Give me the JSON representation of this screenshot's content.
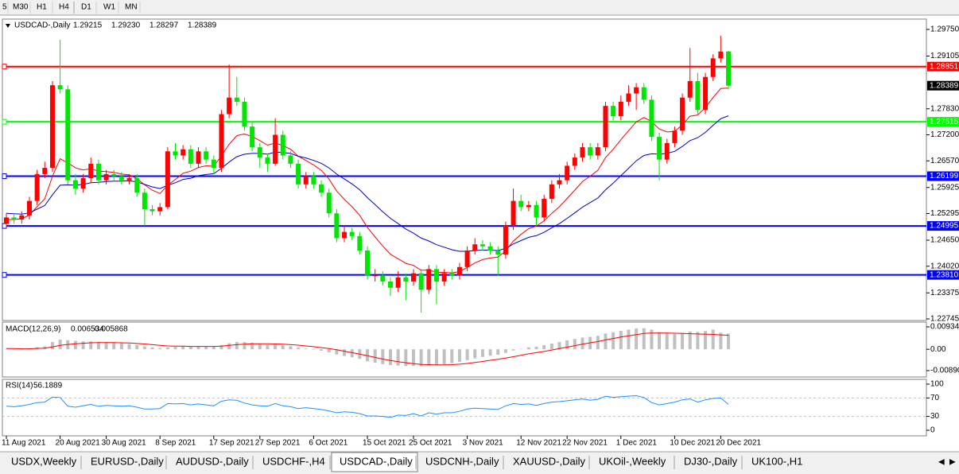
{
  "toolbar": [
    "5",
    "M30",
    "H1",
    "H4",
    "D1",
    "W1",
    "MN"
  ],
  "tabs": [
    "USDX,Weekly",
    "EURUSD-,Daily",
    "AUDUSD-,Daily",
    "USDCHF-,H4",
    "USDCAD-,Daily",
    "USDCNH-,Daily",
    "XAUUSD-,Daily",
    "UKOil-,Weekly",
    "DJ30-,Daily",
    "UK100-,H1"
  ],
  "active_tab": "USDCAD-,Daily",
  "chart_data": {
    "type": "candlestick",
    "title": "USDCAD-,Daily",
    "last_labels": [
      "1.29215",
      "1.29230",
      "1.28297",
      "1.28389"
    ],
    "up_color": "#ff0000",
    "down_color": "#00e600",
    "categories": [
      "11 Aug 2021",
      null,
      null,
      null,
      null,
      null,
      null,
      "20 Aug 2021",
      null,
      null,
      null,
      null,
      null,
      "30 Aug 2021",
      null,
      null,
      null,
      null,
      null,
      null,
      "8 Sep 2021",
      null,
      null,
      null,
      null,
      null,
      null,
      "17 Sep 2021",
      null,
      null,
      null,
      null,
      null,
      "27 Sep 2021",
      null,
      null,
      null,
      null,
      null,
      null,
      "6 Oct 2021",
      null,
      null,
      null,
      null,
      null,
      null,
      "15 Oct 2021",
      null,
      null,
      null,
      null,
      null,
      "25 Oct 2021",
      null,
      null,
      null,
      null,
      null,
      null,
      "3 Nov 2021",
      null,
      null,
      null,
      null,
      null,
      null,
      "12 Nov 2021",
      null,
      null,
      null,
      null,
      null,
      "22 Nov 2021",
      null,
      null,
      null,
      null,
      null,
      null,
      "1 Dec 2021",
      null,
      null,
      null,
      null,
      null,
      null,
      "10 Dec 2021",
      null,
      null,
      null,
      null,
      null,
      "20 Dec 2021",
      null
    ],
    "ohlc": [
      [
        1.2505,
        1.253,
        1.2495,
        1.252
      ],
      [
        1.252,
        1.253,
        1.2505,
        1.2515
      ],
      [
        1.2515,
        1.2535,
        1.2505,
        1.2525
      ],
      [
        1.2525,
        1.257,
        1.2515,
        1.256
      ],
      [
        1.256,
        1.2635,
        1.255,
        1.2625
      ],
      [
        1.2625,
        1.2655,
        1.2615,
        1.264
      ],
      [
        1.264,
        1.285,
        1.263,
        1.284
      ],
      [
        1.284,
        1.295,
        1.282,
        1.283
      ],
      [
        1.283,
        1.284,
        1.26,
        1.261
      ],
      [
        1.261,
        1.2625,
        1.2575,
        1.259
      ],
      [
        1.259,
        1.2625,
        1.258,
        1.2615
      ],
      [
        1.2615,
        1.2665,
        1.2605,
        1.265
      ],
      [
        1.265,
        1.266,
        1.26,
        1.261
      ],
      [
        1.261,
        1.2635,
        1.26,
        1.2625
      ],
      [
        1.2625,
        1.2635,
        1.261,
        1.262
      ],
      [
        1.262,
        1.263,
        1.26,
        1.261
      ],
      [
        1.261,
        1.2625,
        1.26,
        1.2615
      ],
      [
        1.2615,
        1.2625,
        1.257,
        1.258
      ],
      [
        1.258,
        1.259,
        1.25,
        1.254
      ],
      [
        1.254,
        1.255,
        1.2525,
        1.2535
      ],
      [
        1.2535,
        1.2555,
        1.2525,
        1.2545
      ],
      [
        1.2545,
        1.269,
        1.254,
        1.268
      ],
      [
        1.268,
        1.27,
        1.266,
        1.267
      ],
      [
        1.267,
        1.2695,
        1.266,
        1.2685
      ],
      [
        1.2685,
        1.2695,
        1.264,
        1.265
      ],
      [
        1.265,
        1.269,
        1.264,
        1.268
      ],
      [
        1.268,
        1.269,
        1.265,
        1.266
      ],
      [
        1.266,
        1.267,
        1.2625,
        1.264
      ],
      [
        1.264,
        1.278,
        1.263,
        1.277
      ],
      [
        1.277,
        1.289,
        1.276,
        1.281
      ],
      [
        1.281,
        1.286,
        1.279,
        1.28
      ],
      [
        1.28,
        1.281,
        1.273,
        1.274
      ],
      [
        1.274,
        1.275,
        1.268,
        1.269
      ],
      [
        1.269,
        1.27,
        1.264,
        1.2665
      ],
      [
        1.2665,
        1.2675,
        1.263,
        1.265
      ],
      [
        1.265,
        1.276,
        1.2645,
        1.272
      ],
      [
        1.272,
        1.273,
        1.266,
        1.267
      ],
      [
        1.267,
        1.268,
        1.264,
        1.265
      ],
      [
        1.265,
        1.266,
        1.259,
        1.26
      ],
      [
        1.26,
        1.263,
        1.259,
        1.262
      ],
      [
        1.262,
        1.263,
        1.259,
        1.26
      ],
      [
        1.26,
        1.261,
        1.257,
        1.258
      ],
      [
        1.258,
        1.259,
        1.252,
        1.253
      ],
      [
        1.253,
        1.254,
        1.246,
        1.247
      ],
      [
        1.247,
        1.25,
        1.246,
        1.2485
      ],
      [
        1.2485,
        1.2495,
        1.2465,
        1.2475
      ],
      [
        1.2475,
        1.2485,
        1.243,
        1.244
      ],
      [
        1.244,
        1.245,
        1.237,
        1.238
      ],
      [
        1.238,
        1.2395,
        1.2365,
        1.238
      ],
      [
        1.238,
        1.239,
        1.2355,
        1.2365
      ],
      [
        1.2365,
        1.2375,
        1.233,
        1.235
      ],
      [
        1.235,
        1.239,
        1.234,
        1.2375
      ],
      [
        1.2375,
        1.2385,
        1.232,
        1.2365
      ],
      [
        1.2365,
        1.2395,
        1.2355,
        1.2385
      ],
      [
        1.2385,
        1.2395,
        1.229,
        1.2345
      ],
      [
        1.2345,
        1.2405,
        1.2335,
        1.2395
      ],
      [
        1.2395,
        1.2405,
        1.231,
        1.2365
      ],
      [
        1.2365,
        1.2395,
        1.2355,
        1.2385
      ],
      [
        1.2385,
        1.2395,
        1.237,
        1.238
      ],
      [
        1.238,
        1.241,
        1.237,
        1.24
      ],
      [
        1.24,
        1.245,
        1.239,
        1.244
      ],
      [
        1.244,
        1.247,
        1.243,
        1.2455
      ],
      [
        1.2455,
        1.2465,
        1.244,
        1.245
      ],
      [
        1.245,
        1.246,
        1.243,
        1.244
      ],
      [
        1.244,
        1.245,
        1.238,
        1.243
      ],
      [
        1.243,
        1.251,
        1.242,
        1.25
      ],
      [
        1.25,
        1.259,
        1.249,
        1.256
      ],
      [
        1.256,
        1.2575,
        1.2535,
        1.2545
      ],
      [
        1.2545,
        1.256,
        1.2535,
        1.255
      ],
      [
        1.255,
        1.256,
        1.25,
        1.252
      ],
      [
        1.252,
        1.2575,
        1.251,
        1.2565
      ],
      [
        1.2565,
        1.261,
        1.2555,
        1.26
      ],
      [
        1.26,
        1.2625,
        1.259,
        1.261
      ],
      [
        1.261,
        1.2655,
        1.26,
        1.2645
      ],
      [
        1.2645,
        1.2675,
        1.2635,
        1.2665
      ],
      [
        1.2665,
        1.27,
        1.2655,
        1.269
      ],
      [
        1.269,
        1.27,
        1.266,
        1.267
      ],
      [
        1.267,
        1.27,
        1.266,
        1.269
      ],
      [
        1.269,
        1.28,
        1.268,
        1.279
      ],
      [
        1.279,
        1.28,
        1.2755,
        1.2765
      ],
      [
        1.2765,
        1.2815,
        1.2755,
        1.28
      ],
      [
        1.28,
        1.284,
        1.279,
        1.282
      ],
      [
        1.282,
        1.2845,
        1.278,
        1.2835
      ],
      [
        1.2835,
        1.2845,
        1.2795,
        1.2805
      ],
      [
        1.2805,
        1.2815,
        1.2705,
        1.2715
      ],
      [
        1.2715,
        1.2725,
        1.261,
        1.266
      ],
      [
        1.266,
        1.271,
        1.265,
        1.27
      ],
      [
        1.27,
        1.274,
        1.269,
        1.273
      ],
      [
        1.273,
        1.282,
        1.272,
        1.281
      ],
      [
        1.281,
        1.293,
        1.28,
        1.285
      ],
      [
        1.285,
        1.287,
        1.277,
        1.278
      ],
      [
        1.278,
        1.287,
        1.277,
        1.286
      ],
      [
        1.286,
        1.2915,
        1.285,
        1.2905
      ],
      [
        1.2905,
        1.296,
        1.2895,
        1.29215
      ],
      [
        1.29215,
        1.2923,
        1.28297,
        1.28389
      ]
    ],
    "ma": [
      {
        "color": "#ff0000",
        "values": [
          1.2515,
          1.2515,
          1.2517,
          1.2526,
          1.2546,
          1.2565,
          1.262,
          1.2662,
          1.2652,
          1.264,
          1.2635,
          1.2638,
          1.2632,
          1.2631,
          1.2629,
          1.2625,
          1.2623,
          1.2614,
          1.2599,
          1.2586,
          1.2578,
          1.2598,
          1.2612,
          1.2627,
          1.2632,
          1.2641,
          1.2645,
          1.2644,
          1.2669,
          1.2697,
          1.2718,
          1.2722,
          1.2716,
          1.2706,
          1.2695,
          1.27,
          1.2694,
          1.2685,
          1.2668,
          1.2658,
          1.2647,
          1.2634,
          1.2613,
          1.2584,
          1.2564,
          1.2546,
          1.2525,
          1.2496,
          1.2473,
          1.2451,
          1.2431,
          1.242,
          1.2409,
          1.2404,
          1.2392,
          1.2393,
          1.2387,
          1.2387,
          1.2386,
          1.2389,
          1.2399,
          1.241,
          1.2418,
          1.2422,
          1.2424,
          1.2439,
          1.2463,
          1.2479,
          1.2493,
          1.2499,
          1.2512,
          1.253,
          1.2546,
          1.2566,
          1.2586,
          1.2607,
          1.262,
          1.2634,
          1.2665,
          1.2685,
          1.2708,
          1.273,
          1.2751,
          1.2762,
          1.2752,
          1.2734,
          1.2727,
          1.2728,
          1.2744,
          1.2765,
          1.2768,
          1.2786,
          1.281,
          1.2832,
          1.2833
        ]
      },
      {
        "color": "#0000cd",
        "values": [
          1.253,
          1.2529,
          1.2528,
          1.2531,
          1.254,
          1.2549,
          1.2575,
          1.2598,
          1.2599,
          1.2598,
          1.26,
          1.2604,
          1.2605,
          1.2607,
          1.2608,
          1.2608,
          1.2609,
          1.2606,
          1.26,
          1.2594,
          1.259,
          1.2598,
          1.2604,
          1.2612,
          1.2615,
          1.2621,
          1.2624,
          1.2626,
          1.2639,
          1.2654,
          1.2667,
          1.2673,
          1.2675,
          1.2675,
          1.2673,
          1.2678,
          1.2677,
          1.2675,
          1.2668,
          1.2664,
          1.2658,
          1.2651,
          1.264,
          1.2625,
          1.2613,
          1.2601,
          1.2587,
          1.2568,
          1.2551,
          1.2534,
          1.2518,
          1.2505,
          1.2492,
          1.2482,
          1.247,
          1.2463,
          1.2454,
          1.2448,
          1.2442,
          1.2438,
          1.2438,
          1.244,
          1.2441,
          1.2441,
          1.244,
          1.2445,
          1.2456,
          1.2464,
          1.2472,
          1.2476,
          1.2484,
          1.2495,
          1.2505,
          1.2518,
          1.2531,
          1.2545,
          1.2556,
          1.2567,
          1.2587,
          1.2603,
          1.2621,
          1.2639,
          1.2657,
          1.267,
          1.2674,
          1.2673,
          1.2675,
          1.268,
          1.2692,
          1.2706,
          1.2713,
          1.2726,
          1.2743,
          1.2759,
          1.2766
        ]
      }
    ],
    "ylim": [
      1.22745,
      1.2975
    ],
    "yticks": [
      {
        "value": 1.2975,
        "label": "1.29750"
      },
      1.29105,
      {
        "value": 1.2783,
        "label": "1.27830"
      },
      {
        "value": 1.272,
        "label": "1.27200"
      },
      {
        "value": 1.2657,
        "label": "1.26570"
      },
      1.25925,
      1.25295,
      {
        "value": 1.2465,
        "label": "1.24650"
      },
      {
        "value": 1.2402,
        "label": "1.24020"
      },
      1.23375,
      1.22745
    ],
    "hlines": [
      {
        "value": 1.28851,
        "color": "#ff0000"
      },
      {
        "value": 1.27515,
        "color": "#00ff00"
      },
      {
        "value": 1.26199,
        "color": "#0000ff"
      },
      {
        "value": 1.24995,
        "color": "#0000ff"
      },
      {
        "value": 1.2381,
        "label": "1.23810",
        "color": "#0000ff"
      }
    ],
    "macd": {
      "title": "MACD(12,26,9)",
      "hist_color": "#c0c0c0",
      "signal_color": "#ff0000",
      "hist": [
        0.0002,
        0.0001,
        0.0001,
        0.0003,
        0.0008,
        0.0012,
        0.003,
        0.004,
        0.0038,
        0.0035,
        0.0033,
        0.0033,
        0.0031,
        0.003,
        0.0028,
        0.0025,
        0.0022,
        0.0018,
        0.0012,
        0.0008,
        0.0005,
        0.0008,
        0.001,
        0.0012,
        0.0012,
        0.0013,
        0.0012,
        0.0011,
        0.0018,
        0.0025,
        0.003,
        0.003,
        0.0027,
        0.0023,
        0.0019,
        0.002,
        0.0017,
        0.0013,
        0.0007,
        0.0003,
        -0.0001,
        -0.0006,
        -0.0013,
        -0.0022,
        -0.0028,
        -0.0033,
        -0.004,
        -0.005,
        -0.0056,
        -0.0062,
        -0.0066,
        -0.0068,
        -0.007,
        -0.007,
        -0.0071,
        -0.0068,
        -0.0066,
        -0.0062,
        -0.0058,
        -0.0053,
        -0.0045,
        -0.0038,
        -0.0032,
        -0.0027,
        -0.0023,
        -0.0015,
        -0.0005,
        0.0002,
        0.0008,
        0.0011,
        0.0017,
        0.0024,
        0.003,
        0.0037,
        0.0043,
        0.0049,
        0.0052,
        0.0056,
        0.0066,
        0.0071,
        0.0077,
        0.0082,
        0.0087,
        0.0088,
        0.0082,
        0.0072,
        0.0067,
        0.0064,
        0.0068,
        0.0074,
        0.0072,
        0.0076,
        0.0082,
        0.0069,
        0.006534
      ],
      "signal": [
        0.0003,
        0.0003,
        0.0002,
        0.0002,
        0.0004,
        0.0005,
        0.001,
        0.0016,
        0.002,
        0.0023,
        0.0025,
        0.0027,
        0.0028,
        0.0028,
        0.0028,
        0.0027,
        0.0026,
        0.0024,
        0.0022,
        0.0019,
        0.0016,
        0.0014,
        0.0013,
        0.0013,
        0.0012,
        0.0012,
        0.0012,
        0.0012,
        0.0013,
        0.0016,
        0.0019,
        0.0021,
        0.0023,
        0.0023,
        0.0023,
        0.0022,
        0.0021,
        0.0019,
        0.0017,
        0.0014,
        0.0011,
        0.0007,
        0.0003,
        -0.0002,
        -0.0008,
        -0.0014,
        -0.002,
        -0.0027,
        -0.0034,
        -0.0041,
        -0.0047,
        -0.0052,
        -0.0056,
        -0.006,
        -0.0063,
        -0.0064,
        -0.0065,
        -0.0065,
        -0.0064,
        -0.0062,
        -0.0059,
        -0.0055,
        -0.0051,
        -0.0046,
        -0.0042,
        -0.0037,
        -0.0031,
        -0.0025,
        -0.0019,
        -0.0014,
        -0.0009,
        -0.0003,
        0.0003,
        0.0009,
        0.0015,
        0.0021,
        0.0027,
        0.0032,
        0.0039,
        0.0045,
        0.0051,
        0.0056,
        0.0061,
        0.0066,
        0.0068,
        0.0068,
        0.0068,
        0.0067,
        0.0066,
        0.0065,
        0.0064,
        0.0063,
        0.0062,
        0.006,
        0.005868
      ],
      "ylim": [
        -0.0089,
        0.009345
      ],
      "yticks": [
        0.009345,
        {
          "value": 0,
          "label": "0.00"
        },
        {
          "value": -0.0089,
          "label": "-0.00890"
        }
      ]
    },
    "rsi": {
      "title": "RSI(14)",
      "color": "#1e90ff",
      "values": [
        52,
        51,
        53,
        56,
        60,
        61,
        72,
        71,
        52,
        50,
        53,
        56,
        52,
        54,
        53,
        52,
        53,
        50,
        46,
        46,
        47,
        58,
        57,
        58,
        55,
        57,
        55,
        53,
        63,
        66,
        65,
        59,
        55,
        53,
        52,
        58,
        53,
        51,
        47,
        49,
        47,
        45,
        42,
        38,
        40,
        39,
        36,
        31,
        31,
        30,
        28,
        33,
        32,
        36,
        31,
        38,
        35,
        38,
        38,
        41,
        46,
        48,
        47,
        46,
        45,
        53,
        58,
        56,
        57,
        54,
        58,
        61,
        62,
        64,
        66,
        68,
        65,
        67,
        74,
        71,
        73,
        74,
        75,
        71,
        60,
        55,
        58,
        61,
        66,
        68,
        61,
        66,
        69,
        70,
        56.1889
      ],
      "ylim": [
        0,
        100
      ],
      "yticks": [
        100,
        70,
        30,
        0
      ],
      "levels": [
        70,
        30
      ]
    }
  }
}
